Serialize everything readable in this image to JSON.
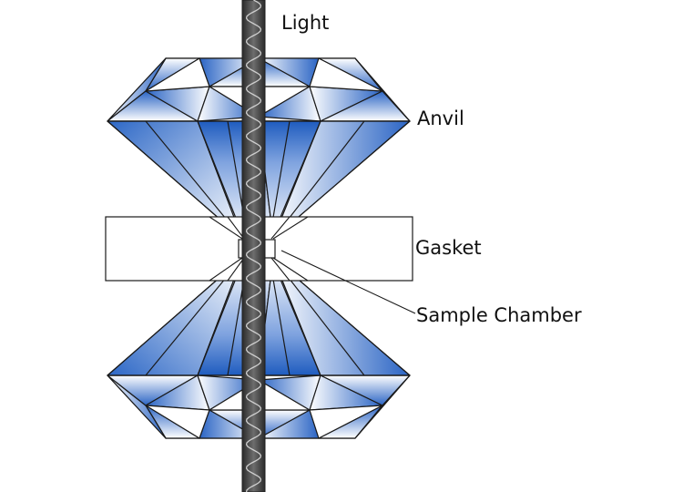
{
  "labels": {
    "light": "Light",
    "anvil": "Anvil",
    "gasket": "Gasket",
    "sample_chamber": "Sample Chamber"
  },
  "colors": {
    "diamond_blue": "#1f5fc0",
    "diamond_light": "#ffffff",
    "outline": "#1a1a1a",
    "beam": "#3a3a3a",
    "background": "#ffffff"
  }
}
